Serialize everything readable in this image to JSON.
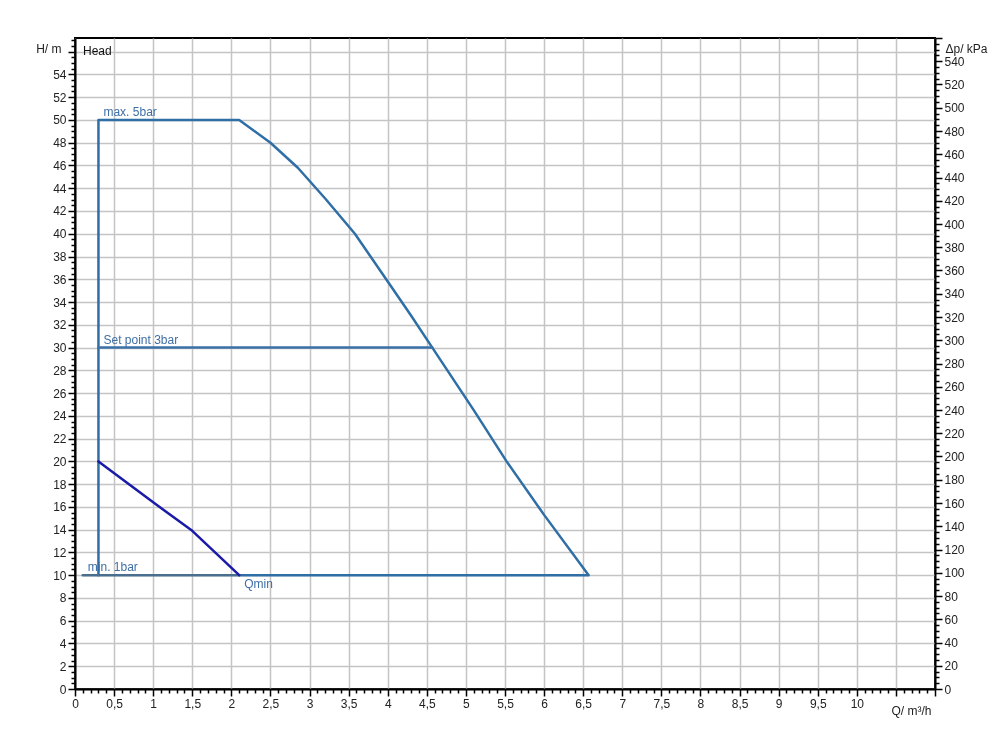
{
  "chart_data": {
    "type": "line",
    "xlabel": "Q/ m³/h",
    "ylabel": "H/ m",
    "y2label": "Δp/ kPa",
    "annotations": [
      "Head",
      {
        "text": "max. 5bar",
        "x": 0.3,
        "y": 50
      },
      {
        "text": "Set point 3bar",
        "x": 0.3,
        "y": 30
      },
      {
        "text": "min. 1bar",
        "x": 0.1,
        "y": 10
      },
      {
        "text": "Qmin",
        "x": 2.1,
        "y": 10
      }
    ],
    "series": [
      {
        "color": "#2f6fa5",
        "x": [
          0.3,
          0.3,
          2.1,
          2.5,
          2.85,
          3.2,
          3.58,
          4,
          4.3,
          4.57,
          5.1,
          5.52,
          6,
          6.57,
          2.1
        ],
        "values": [
          10,
          50,
          50,
          48,
          45.8,
          43.1,
          40,
          35.8,
          32.8,
          30,
          24.5,
          20,
          15.3,
          10,
          10
        ]
      },
      {
        "color": "#3a72a8",
        "x": [
          0.3,
          4.57
        ],
        "values": [
          30,
          30
        ]
      },
      {
        "color": "#4a6e8e",
        "x": [
          0.1,
          2.1
        ],
        "values": [
          10,
          10
        ]
      },
      {
        "color": "#1a1aa8",
        "x": [
          0.3,
          1,
          1.5,
          2.1
        ],
        "values": [
          20,
          16.4,
          13.9,
          10
        ]
      }
    ],
    "xlim": [
      0,
      11
    ],
    "ylim": [
      0,
      57.2
    ],
    "y2lim": [
      0,
      560
    ],
    "xticks": [
      0,
      {
        "value": 0.1,
        "label": null
      },
      {
        "value": 0.2,
        "label": null
      },
      {
        "value": 0.3,
        "label": null
      },
      {
        "value": 0.4,
        "label": null
      },
      {
        "value": 0.5,
        "label": "0,5"
      },
      {
        "value": 0.6,
        "label": null
      },
      {
        "value": 0.7,
        "label": null
      },
      {
        "value": 0.8,
        "label": null
      },
      {
        "value": 0.9,
        "label": null
      },
      1,
      {
        "value": 1.1,
        "label": null
      },
      {
        "value": 1.2,
        "label": null
      },
      {
        "value": 1.3,
        "label": null
      },
      {
        "value": 1.4,
        "label": null
      },
      {
        "value": 1.5,
        "label": "1,5"
      },
      {
        "value": 1.6,
        "label": null
      },
      {
        "value": 1.7,
        "label": null
      },
      {
        "value": 1.8,
        "label": null
      },
      {
        "value": 1.9,
        "label": null
      },
      2,
      {
        "value": 2.1,
        "label": null
      },
      {
        "value": 2.2,
        "label": null
      },
      {
        "value": 2.3,
        "label": null
      },
      {
        "value": 2.4,
        "label": null
      },
      {
        "value": 2.5,
        "label": "2,5"
      },
      {
        "value": 2.6,
        "label": null
      },
      {
        "value": 2.7,
        "label": null
      },
      {
        "value": 2.8,
        "label": null
      },
      {
        "value": 2.9,
        "label": null
      },
      3,
      {
        "value": 3.1,
        "label": null
      },
      {
        "value": 3.2,
        "label": null
      },
      {
        "value": 3.3,
        "label": null
      },
      {
        "value": 3.4,
        "label": null
      },
      {
        "value": 3.5,
        "label": "3,5"
      },
      {
        "value": 3.6,
        "label": null
      },
      {
        "value": 3.7,
        "label": null
      },
      {
        "value": 3.8,
        "label": null
      },
      {
        "value": 3.9,
        "label": null
      },
      4,
      {
        "value": 4.1,
        "label": null
      },
      {
        "value": 4.2,
        "label": null
      },
      {
        "value": 4.3,
        "label": null
      },
      {
        "value": 4.4,
        "label": null
      },
      {
        "value": 4.5,
        "label": "4,5"
      },
      {
        "value": 4.6,
        "label": null
      },
      {
        "value": 4.7,
        "label": null
      },
      {
        "value": 4.8,
        "label": null
      },
      {
        "value": 4.9,
        "label": null
      },
      5,
      {
        "value": 5.1,
        "label": null
      },
      {
        "value": 5.2,
        "label": null
      },
      {
        "value": 5.3,
        "label": null
      },
      {
        "value": 5.4,
        "label": null
      },
      {
        "value": 5.5,
        "label": "5,5"
      },
      {
        "value": 5.6,
        "label": null
      },
      {
        "value": 5.7,
        "label": null
      },
      {
        "value": 5.8,
        "label": null
      },
      {
        "value": 5.9,
        "label": null
      },
      6,
      {
        "value": 6.1,
        "label": null
      },
      {
        "value": 6.2,
        "label": null
      },
      {
        "value": 6.3,
        "label": null
      },
      {
        "value": 6.4,
        "label": null
      },
      {
        "value": 6.5,
        "label": "6,5"
      },
      {
        "value": 6.6,
        "label": null
      },
      {
        "value": 6.7,
        "label": null
      },
      {
        "value": 6.8,
        "label": null
      },
      {
        "value": 6.9,
        "label": null
      },
      7,
      {
        "value": 7.1,
        "label": null
      },
      {
        "value": 7.2,
        "label": null
      },
      {
        "value": 7.3,
        "label": null
      },
      {
        "value": 7.4,
        "label": null
      },
      {
        "value": 7.5,
        "label": "7,5"
      },
      {
        "value": 7.6,
        "label": null
      },
      {
        "value": 7.7,
        "label": null
      },
      {
        "value": 7.8,
        "label": null
      },
      {
        "value": 7.9,
        "label": null
      },
      8,
      {
        "value": 8.1,
        "label": null
      },
      {
        "value": 8.2,
        "label": null
      },
      {
        "value": 8.3,
        "label": null
      },
      {
        "value": 8.4,
        "label": null
      },
      {
        "value": 8.5,
        "label": "8,5"
      },
      {
        "value": 8.6,
        "label": null
      },
      {
        "value": 8.7,
        "label": null
      },
      {
        "value": 8.8,
        "label": null
      },
      {
        "value": 8.9,
        "label": null
      },
      9,
      {
        "value": 9.1,
        "label": null
      },
      {
        "value": 9.2,
        "label": null
      },
      {
        "value": 9.3,
        "label": null
      },
      {
        "value": 9.4,
        "label": null
      },
      {
        "value": 9.5,
        "label": "9,5"
      },
      {
        "value": 9.6,
        "label": null
      },
      {
        "value": 9.7,
        "label": null
      },
      {
        "value": 9.8,
        "label": null
      },
      {
        "value": 9.9,
        "label": null
      },
      10,
      {
        "value": 10.1,
        "label": null
      },
      {
        "value": 10.2,
        "label": null
      },
      {
        "value": 10.3,
        "label": null
      },
      {
        "value": 10.4,
        "label": null
      },
      {
        "value": 10.5,
        "label": null
      },
      {
        "value": 10.6,
        "label": null
      },
      {
        "value": 10.7,
        "label": null
      },
      {
        "value": 10.8,
        "label": null
      },
      {
        "value": 10.9,
        "label": null
      },
      {
        "value": 11,
        "label": null
      }
    ],
    "yticks": [
      0,
      {
        "value": 0.5,
        "label": null
      },
      {
        "value": 1,
        "label": null
      },
      {
        "value": 1.5,
        "label": null
      },
      2,
      {
        "value": 2.5,
        "label": null
      },
      {
        "value": 3,
        "label": null
      },
      {
        "value": 3.5,
        "label": null
      },
      4,
      {
        "value": 4.5,
        "label": null
      },
      {
        "value": 5,
        "label": null
      },
      {
        "value": 5.5,
        "label": null
      },
      6,
      {
        "value": 6.5,
        "label": null
      },
      {
        "value": 7,
        "label": null
      },
      {
        "value": 7.5,
        "label": null
      },
      8,
      {
        "value": 8.5,
        "label": null
      },
      {
        "value": 9,
        "label": null
      },
      {
        "value": 9.5,
        "label": null
      },
      10,
      {
        "value": 10.5,
        "label": null
      },
      {
        "value": 11,
        "label": null
      },
      {
        "value": 11.5,
        "label": null
      },
      12,
      {
        "value": 12.5,
        "label": null
      },
      {
        "value": 13,
        "label": null
      },
      {
        "value": 13.5,
        "label": null
      },
      14,
      {
        "value": 14.5,
        "label": null
      },
      {
        "value": 15,
        "label": null
      },
      {
        "value": 15.5,
        "label": null
      },
      16,
      {
        "value": 16.5,
        "label": null
      },
      {
        "value": 17,
        "label": null
      },
      {
        "value": 17.5,
        "label": null
      },
      18,
      {
        "value": 18.5,
        "label": null
      },
      {
        "value": 19,
        "label": null
      },
      {
        "value": 19.5,
        "label": null
      },
      20,
      {
        "value": 20.5,
        "label": null
      },
      {
        "value": 21,
        "label": null
      },
      {
        "value": 21.5,
        "label": null
      },
      22,
      {
        "value": 22.5,
        "label": null
      },
      {
        "value": 23,
        "label": null
      },
      {
        "value": 23.5,
        "label": null
      },
      24,
      {
        "value": 24.5,
        "label": null
      },
      {
        "value": 25,
        "label": null
      },
      {
        "value": 25.5,
        "label": null
      },
      26,
      {
        "value": 26.5,
        "label": null
      },
      {
        "value": 27,
        "label": null
      },
      {
        "value": 27.5,
        "label": null
      },
      28,
      {
        "value": 28.5,
        "label": null
      },
      {
        "value": 29,
        "label": null
      },
      {
        "value": 29.5,
        "label": null
      },
      30,
      {
        "value": 30.5,
        "label": null
      },
      {
        "value": 31,
        "label": null
      },
      {
        "value": 31.5,
        "label": null
      },
      32,
      {
        "value": 32.5,
        "label": null
      },
      {
        "value": 33,
        "label": null
      },
      {
        "value": 33.5,
        "label": null
      },
      34,
      {
        "value": 34.5,
        "label": null
      },
      {
        "value": 35,
        "label": null
      },
      {
        "value": 35.5,
        "label": null
      },
      36,
      {
        "value": 36.5,
        "label": null
      },
      {
        "value": 37,
        "label": null
      },
      {
        "value": 37.5,
        "label": null
      },
      38,
      {
        "value": 38.5,
        "label": null
      },
      {
        "value": 39,
        "label": null
      },
      {
        "value": 39.5,
        "label": null
      },
      40,
      {
        "value": 40.5,
        "label": null
      },
      {
        "value": 41,
        "label": null
      },
      {
        "value": 41.5,
        "label": null
      },
      42,
      {
        "value": 42.5,
        "label": null
      },
      {
        "value": 43,
        "label": null
      },
      {
        "value": 43.5,
        "label": null
      },
      44,
      {
        "value": 44.5,
        "label": null
      },
      {
        "value": 45,
        "label": null
      },
      {
        "value": 45.5,
        "label": null
      },
      46,
      {
        "value": 46.5,
        "label": null
      },
      {
        "value": 47,
        "label": null
      },
      {
        "value": 47.5,
        "label": null
      },
      48,
      {
        "value": 48.5,
        "label": null
      },
      {
        "value": 49,
        "label": null
      },
      {
        "value": 49.5,
        "label": null
      },
      50,
      {
        "value": 50.5,
        "label": null
      },
      {
        "value": 51,
        "label": null
      },
      {
        "value": 51.5,
        "label": null
      },
      52,
      {
        "value": 52.5,
        "label": null
      },
      {
        "value": 53,
        "label": null
      },
      {
        "value": 53.5,
        "label": null
      },
      54,
      {
        "value": 54.5,
        "label": null
      },
      {
        "value": 55,
        "label": null
      },
      {
        "value": 55.5,
        "label": null
      },
      {
        "value": 56,
        "label": null
      },
      {
        "value": 56.5,
        "label": null
      },
      {
        "value": 57,
        "label": null
      }
    ],
    "y2ticks": [
      0,
      {
        "value": 5,
        "label": null
      },
      {
        "value": 10,
        "label": null
      },
      {
        "value": 15,
        "label": null
      },
      20,
      {
        "value": 25,
        "label": null
      },
      {
        "value": 30,
        "label": null
      },
      {
        "value": 35,
        "label": null
      },
      40,
      {
        "value": 45,
        "label": null
      },
      {
        "value": 50,
        "label": null
      },
      {
        "value": 55,
        "label": null
      },
      60,
      {
        "value": 65,
        "label": null
      },
      {
        "value": 70,
        "label": null
      },
      {
        "value": 75,
        "label": null
      },
      80,
      {
        "value": 85,
        "label": null
      },
      {
        "value": 90,
        "label": null
      },
      {
        "value": 95,
        "label": null
      },
      100,
      {
        "value": 105,
        "label": null
      },
      {
        "value": 110,
        "label": null
      },
      {
        "value": 115,
        "label": null
      },
      120,
      {
        "value": 125,
        "label": null
      },
      {
        "value": 130,
        "label": null
      },
      {
        "value": 135,
        "label": null
      },
      140,
      {
        "value": 145,
        "label": null
      },
      {
        "value": 150,
        "label": null
      },
      {
        "value": 155,
        "label": null
      },
      160,
      {
        "value": 165,
        "label": null
      },
      {
        "value": 170,
        "label": null
      },
      {
        "value": 175,
        "label": null
      },
      180,
      {
        "value": 185,
        "label": null
      },
      {
        "value": 190,
        "label": null
      },
      {
        "value": 195,
        "label": null
      },
      200,
      {
        "value": 205,
        "label": null
      },
      {
        "value": 210,
        "label": null
      },
      {
        "value": 215,
        "label": null
      },
      220,
      {
        "value": 225,
        "label": null
      },
      {
        "value": 230,
        "label": null
      },
      {
        "value": 235,
        "label": null
      },
      240,
      {
        "value": 245,
        "label": null
      },
      {
        "value": 250,
        "label": null
      },
      {
        "value": 255,
        "label": null
      },
      260,
      {
        "value": 265,
        "label": null
      },
      {
        "value": 270,
        "label": null
      },
      {
        "value": 275,
        "label": null
      },
      280,
      {
        "value": 285,
        "label": null
      },
      {
        "value": 290,
        "label": null
      },
      {
        "value": 295,
        "label": null
      },
      300,
      {
        "value": 305,
        "label": null
      },
      {
        "value": 310,
        "label": null
      },
      {
        "value": 315,
        "label": null
      },
      320,
      {
        "value": 325,
        "label": null
      },
      {
        "value": 330,
        "label": null
      },
      {
        "value": 335,
        "label": null
      },
      340,
      {
        "value": 345,
        "label": null
      },
      {
        "value": 350,
        "label": null
      },
      {
        "value": 355,
        "label": null
      },
      360,
      {
        "value": 365,
        "label": null
      },
      {
        "value": 370,
        "label": null
      },
      {
        "value": 375,
        "label": null
      },
      380,
      {
        "value": 385,
        "label": null
      },
      {
        "value": 390,
        "label": null
      },
      {
        "value": 395,
        "label": null
      },
      400,
      {
        "value": 405,
        "label": null
      },
      {
        "value": 410,
        "label": null
      },
      {
        "value": 415,
        "label": null
      },
      420,
      {
        "value": 425,
        "label": null
      },
      {
        "value": 430,
        "label": null
      },
      {
        "value": 435,
        "label": null
      },
      440,
      {
        "value": 445,
        "label": null
      },
      {
        "value": 450,
        "label": null
      },
      {
        "value": 455,
        "label": null
      },
      460,
      {
        "value": 465,
        "label": null
      },
      {
        "value": 470,
        "label": null
      },
      {
        "value": 475,
        "label": null
      },
      480,
      {
        "value": 485,
        "label": null
      },
      {
        "value": 490,
        "label": null
      },
      {
        "value": 495,
        "label": null
      },
      500,
      {
        "value": 505,
        "label": null
      },
      {
        "value": 510,
        "label": null
      },
      {
        "value": 515,
        "label": null
      },
      520,
      {
        "value": 525,
        "label": null
      },
      {
        "value": 530,
        "label": null
      },
      {
        "value": 535,
        "label": null
      },
      540,
      {
        "value": 545,
        "label": null
      },
      {
        "value": 550,
        "label": null
      },
      {
        "value": 555,
        "label": null
      },
      {
        "value": 560,
        "label": null
      }
    ],
    "grid": true
  }
}
